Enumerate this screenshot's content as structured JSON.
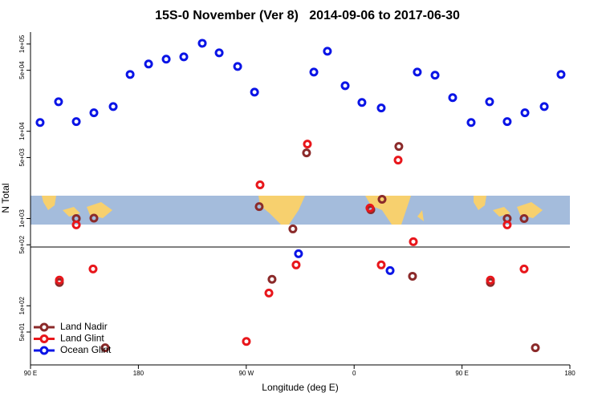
{
  "chart_data": {
    "type": "scatter",
    "title": "15S-0 November (Ver 8)   2014-09-06 to 2017-06-30",
    "x_label": "Longitude (deg E)",
    "y_label": "N Total",
    "log_y": true,
    "xlim": [
      90,
      540
    ],
    "ylim": [
      21,
      137000
    ],
    "xticks": [
      {
        "value": 90,
        "label": "90 E"
      },
      180,
      {
        "value": 270,
        "label": "90 W"
      },
      {
        "value": 360,
        "label": "0"
      },
      {
        "value": 450,
        "label": "90 E"
      },
      {
        "value": 540,
        "label": "180"
      }
    ],
    "yticks": [
      {
        "value": 50,
        "label": "5e+01"
      },
      {
        "value": 100,
        "label": "1e+02"
      },
      {
        "value": 500,
        "label": "5e+02"
      },
      {
        "value": 1000,
        "label": "1e+03"
      },
      {
        "value": 5000,
        "label": "5e+03"
      },
      {
        "value": 10000,
        "label": "1e+04"
      },
      {
        "value": 50000,
        "label": "5e+04"
      },
      {
        "value": 100000,
        "label": "1e+05"
      }
    ],
    "series": [
      {
        "name": "Land Nadir",
        "color": "#8b2a2a",
        "x": [
          114.1,
          128.2,
          142.9,
          152.3,
          280.8,
          291.5,
          308.9,
          320.3,
          383.3,
          373.9,
          397.3,
          408.7,
          473.7,
          487.7,
          501.8,
          511.2
        ],
        "values": [
          185,
          1000,
          1010,
          33,
          1370,
          201,
          760,
          5650,
          1660,
          1260,
          6690,
          218,
          185,
          1000,
          1000,
          33
        ]
      },
      {
        "name": "Land Glint",
        "color": "#e8161b",
        "x": [
          114.1,
          128.2,
          142.2,
          270.1,
          281.5,
          288.9,
          311.6,
          321.0,
          396.7,
          373.2,
          382.6,
          409.4,
          473.7,
          487.7,
          501.8
        ],
        "values": [
          197,
          845,
          264,
          39,
          2430,
          140,
          294,
          7130,
          4670,
          1320,
          294,
          542,
          197,
          845,
          264
        ]
      },
      {
        "name": "Ocean Glint",
        "color": "#0a14e6",
        "x": [
          98.0,
          113.4,
          128.2,
          142.9,
          159.0,
          173.1,
          188.5,
          203.2,
          217.9,
          233.3,
          247.4,
          262.8,
          276.9,
          313.6,
          326.4,
          337.7,
          352.5,
          366.5,
          382.6,
          390.0,
          412.7,
          427.5,
          442.2,
          457.6,
          473.0,
          487.7,
          502.5,
          518.6,
          532.6
        ],
        "values": [
          12600,
          21800,
          12900,
          16300,
          19200,
          44800,
          59000,
          67000,
          71300,
          102000,
          79300,
          55300,
          28100,
          395,
          47700,
          82700,
          33300,
          21400,
          18500,
          253,
          47700,
          43900,
          24300,
          12600,
          21800,
          12900,
          16300,
          19200,
          44800
        ]
      }
    ]
  }
}
